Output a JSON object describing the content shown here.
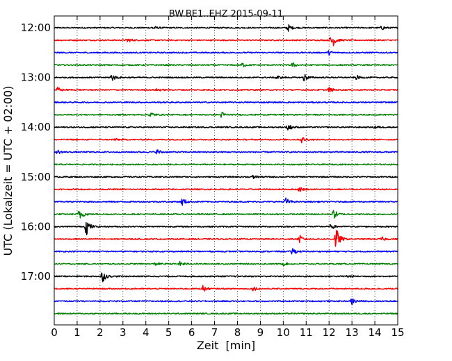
{
  "chart_data": {
    "type": "line",
    "title": "BW.BE1..EHZ 2015-09-11",
    "xlabel": "Zeit  [min]",
    "ylabel": "UTC (Lokalzeit = UTC + 02:00)",
    "xlim": [
      0,
      15
    ],
    "x_ticks": [
      "0",
      "1",
      "2",
      "3",
      "4",
      "5",
      "6",
      "7",
      "8",
      "9",
      "10",
      "11",
      "12",
      "13",
      "14",
      "15"
    ],
    "y_tick_labels": [
      "12:00",
      "13:00",
      "14:00",
      "15:00",
      "16:00",
      "17:00"
    ],
    "grid": "vertical dotted",
    "trace_interval_min": 15,
    "trace_colors": [
      "#000000",
      "#ff0000",
      "#0000ff",
      "#008000"
    ],
    "traces": [
      {
        "start": "12:00",
        "color": "#000000",
        "events": [
          {
            "t": 10.2,
            "amp": 0.55
          },
          {
            "t": 4.3,
            "amp": 0.3
          },
          {
            "t": 14.3,
            "amp": 0.3
          }
        ]
      },
      {
        "start": "12:15",
        "color": "#ff0000",
        "events": [
          {
            "t": 12.1,
            "amp": 1.5
          },
          {
            "t": 3.2,
            "amp": 0.35
          }
        ]
      },
      {
        "start": "12:30",
        "color": "#0000ff",
        "events": [
          {
            "t": 12.0,
            "amp": 0.3
          }
        ]
      },
      {
        "start": "12:45",
        "color": "#008000",
        "events": [
          {
            "t": 8.2,
            "amp": 0.35
          },
          {
            "t": 10.4,
            "amp": 0.35
          }
        ]
      },
      {
        "start": "13:00",
        "color": "#000000",
        "events": [
          {
            "t": 2.5,
            "amp": 0.6
          },
          {
            "t": 10.9,
            "amp": 0.6
          },
          {
            "t": 9.7,
            "amp": 0.35
          },
          {
            "t": 13.2,
            "amp": 0.3
          }
        ]
      },
      {
        "start": "13:15",
        "color": "#ff0000",
        "events": [
          {
            "t": 0.15,
            "amp": 0.35
          },
          {
            "t": 4.5,
            "amp": 0.25
          },
          {
            "t": 12.0,
            "amp": 0.35
          }
        ]
      },
      {
        "start": "13:30",
        "color": "#0000ff",
        "events": []
      },
      {
        "start": "13:45",
        "color": "#008000",
        "events": [
          {
            "t": 4.2,
            "amp": 0.45
          },
          {
            "t": 7.3,
            "amp": 0.45
          }
        ]
      },
      {
        "start": "14:00",
        "color": "#000000",
        "events": [
          {
            "t": 10.2,
            "amp": 0.6
          },
          {
            "t": 14.0,
            "amp": 0.25
          }
        ]
      },
      {
        "start": "14:15",
        "color": "#ff0000",
        "events": [
          {
            "t": 10.8,
            "amp": 0.45
          },
          {
            "t": 2.6,
            "amp": 0.2
          }
        ]
      },
      {
        "start": "14:30",
        "color": "#0000ff",
        "events": [
          {
            "t": 4.5,
            "amp": 0.4
          },
          {
            "t": 0.15,
            "amp": 0.3
          }
        ]
      },
      {
        "start": "14:45",
        "color": "#008000",
        "events": []
      },
      {
        "start": "15:00",
        "color": "#000000",
        "events": [
          {
            "t": 8.7,
            "amp": 0.3
          }
        ]
      },
      {
        "start": "15:15",
        "color": "#ff0000",
        "events": [
          {
            "t": 10.7,
            "amp": 0.35
          }
        ]
      },
      {
        "start": "15:30",
        "color": "#0000ff",
        "events": [
          {
            "t": 5.6,
            "amp": 0.6
          },
          {
            "t": 10.1,
            "amp": 0.6
          }
        ]
      },
      {
        "start": "15:45",
        "color": "#008000",
        "events": [
          {
            "t": 1.1,
            "amp": 1.0
          },
          {
            "t": 12.2,
            "amp": 0.7
          }
        ]
      },
      {
        "start": "16:00",
        "color": "#000000",
        "events": [
          {
            "t": 1.4,
            "amp": 1.3
          },
          {
            "t": 12.1,
            "amp": 0.35
          }
        ]
      },
      {
        "start": "16:15",
        "color": "#ff0000",
        "events": [
          {
            "t": 12.3,
            "amp": 1.8
          },
          {
            "t": 10.7,
            "amp": 0.6
          },
          {
            "t": 14.3,
            "amp": 0.3
          }
        ]
      },
      {
        "start": "16:30",
        "color": "#0000ff",
        "events": [
          {
            "t": 10.4,
            "amp": 0.55
          }
        ]
      },
      {
        "start": "16:45",
        "color": "#008000",
        "events": [
          {
            "t": 5.5,
            "amp": 0.35
          },
          {
            "t": 4.4,
            "amp": 0.2
          },
          {
            "t": 10.0,
            "amp": 0.2
          }
        ]
      },
      {
        "start": "17:00",
        "color": "#000000",
        "events": [
          {
            "t": 2.1,
            "amp": 0.9
          },
          {
            "t": 12.8,
            "amp": 0.2
          }
        ]
      },
      {
        "start": "17:15",
        "color": "#ff0000",
        "events": [
          {
            "t": 6.5,
            "amp": 0.5
          },
          {
            "t": 8.7,
            "amp": 0.3
          }
        ]
      },
      {
        "start": "17:30",
        "color": "#0000ff",
        "events": [
          {
            "t": 13.0,
            "amp": 0.55
          }
        ]
      },
      {
        "start": "17:45",
        "color": "#008000",
        "events": []
      }
    ]
  }
}
